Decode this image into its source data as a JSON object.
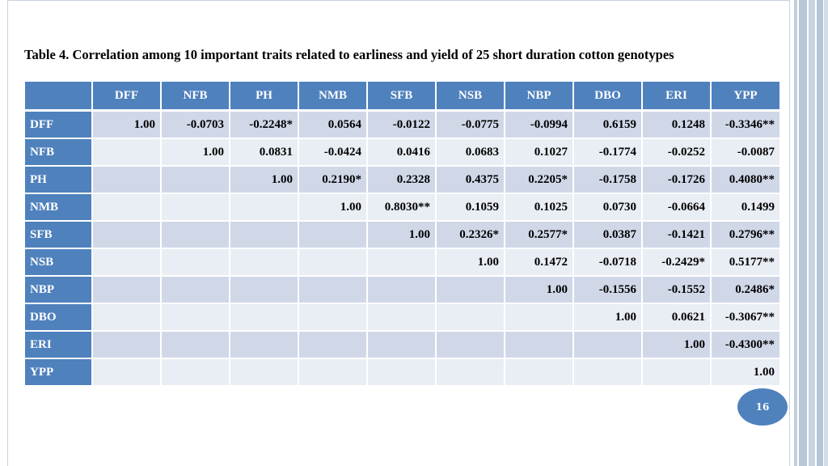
{
  "slide": {
    "title": "Table 4. Correlation among 10 important traits related to earliness and yield of 25 short duration cotton genotypes",
    "page_number": "16",
    "accent_color": "#4f81bd"
  },
  "table": {
    "columns": [
      "DFF",
      "NFB",
      "PH",
      "NMB",
      "SFB",
      "NSB",
      "NBP",
      "DBO",
      "ERI",
      "YPP"
    ],
    "rows": [
      {
        "label": "DFF",
        "cells": [
          "1.00",
          "-0.0703",
          "-0.2248*",
          "0.0564",
          "-0.0122",
          "-0.0775",
          "-0.0994",
          "0.6159",
          "0.1248",
          "-0.3346**"
        ]
      },
      {
        "label": "NFB",
        "cells": [
          "",
          "1.00",
          "0.0831",
          "-0.0424",
          "0.0416",
          "0.0683",
          "0.1027",
          "-0.1774",
          "-0.0252",
          "-0.0087"
        ]
      },
      {
        "label": "PH",
        "cells": [
          "",
          "",
          "1.00",
          "0.2190*",
          "0.2328",
          "0.4375",
          "0.2205*",
          "-0.1758",
          "-0.1726",
          "0.4080**"
        ]
      },
      {
        "label": "NMB",
        "cells": [
          "",
          "",
          "",
          "1.00",
          "0.8030**",
          "0.1059",
          "0.1025",
          "0.0730",
          "-0.0664",
          "0.1499"
        ]
      },
      {
        "label": "SFB",
        "cells": [
          "",
          "",
          "",
          "",
          "1.00",
          "0.2326*",
          "0.2577*",
          "0.0387",
          "-0.1421",
          "0.2796**"
        ]
      },
      {
        "label": "NSB",
        "cells": [
          "",
          "",
          "",
          "",
          "",
          "1.00",
          "0.1472",
          "-0.0718",
          "-0.2429*",
          "0.5177**"
        ]
      },
      {
        "label": "NBP",
        "cells": [
          "",
          "",
          "",
          "",
          "",
          "",
          "1.00",
          "-0.1556",
          "-0.1552",
          "0.2486*"
        ]
      },
      {
        "label": "DBO",
        "cells": [
          "",
          "",
          "",
          "",
          "",
          "",
          "",
          "1.00",
          "0.0621",
          "-0.3067**"
        ]
      },
      {
        "label": "ERI",
        "cells": [
          "",
          "",
          "",
          "",
          "",
          "",
          "",
          "",
          "1.00",
          "-0.4300**"
        ]
      },
      {
        "label": "YPP",
        "cells": [
          "",
          "",
          "",
          "",
          "",
          "",
          "",
          "",
          "",
          "1.00"
        ]
      }
    ]
  }
}
